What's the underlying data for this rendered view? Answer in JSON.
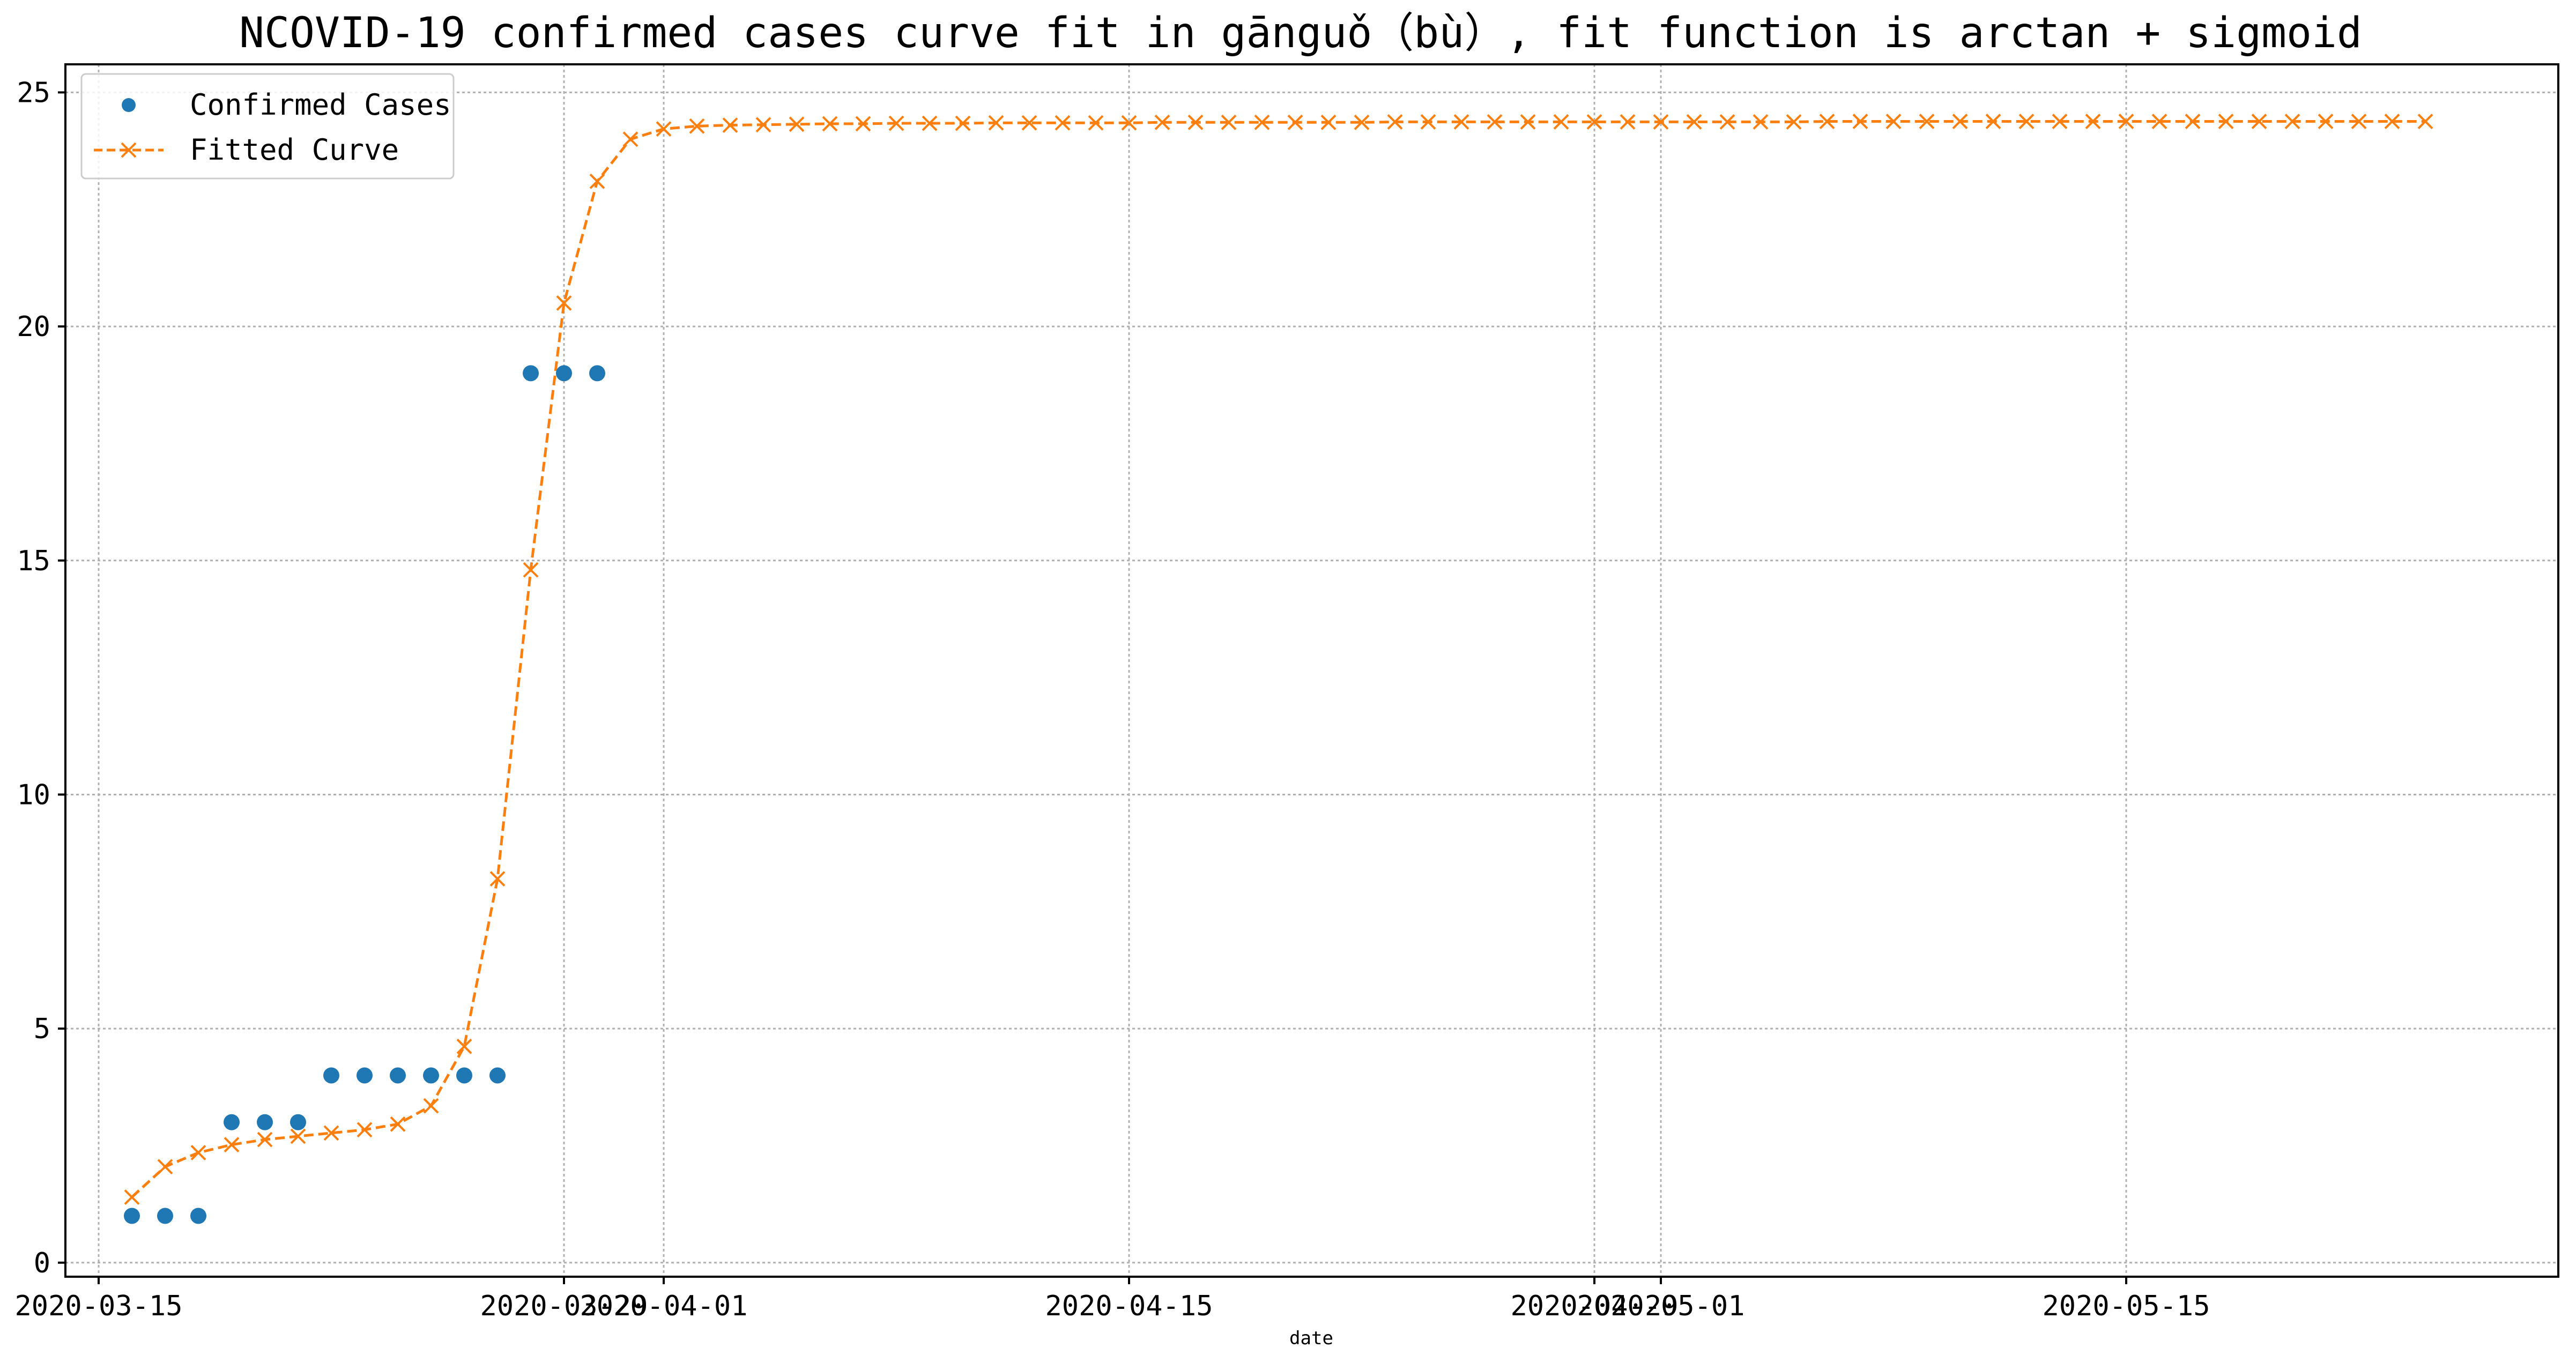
{
  "chart_data": {
    "type": "line",
    "title": "NCOVID-19 confirmed cases curve fit in gānguǒ（bù）, fit function is arctan + sigmoid",
    "xlabel": "date",
    "ylabel": "",
    "x_axis": {
      "type": "date",
      "range": [
        "2020-03-14",
        "2020-05-28"
      ],
      "tick_labels": [
        {
          "date": "2020-03-15",
          "label": "2020-03-15"
        },
        {
          "date": "2020-03-29",
          "label": "2020-03-29"
        },
        {
          "date": "2020-04-01",
          "label": "2020-04-01"
        },
        {
          "date": "2020-04-15",
          "label": "2020-04-15"
        },
        {
          "date": "2020-04-29",
          "label": "2020-04-29"
        },
        {
          "date": "2020-05-01",
          "label": "2020-05-01"
        },
        {
          "date": "2020-05-15",
          "label": "2020-05-15"
        }
      ]
    },
    "y_axis": {
      "range": [
        -0.3,
        25.6
      ],
      "ticks": [
        0,
        5,
        10,
        15,
        20,
        25
      ],
      "tick_labels": [
        "0",
        "5",
        "10",
        "15",
        "20",
        "25"
      ]
    },
    "grid": true,
    "legend": {
      "position": "top-left",
      "entries": [
        "Confirmed Cases",
        "Fitted Curve"
      ]
    },
    "series": [
      {
        "name": "Confirmed Cases",
        "style": "markers",
        "marker": "circle",
        "color": "#1f77b4",
        "points": [
          {
            "date": "2020-03-16",
            "value": 1
          },
          {
            "date": "2020-03-17",
            "value": 1
          },
          {
            "date": "2020-03-18",
            "value": 1
          },
          {
            "date": "2020-03-19",
            "value": 3
          },
          {
            "date": "2020-03-20",
            "value": 3
          },
          {
            "date": "2020-03-21",
            "value": 3
          },
          {
            "date": "2020-03-22",
            "value": 4
          },
          {
            "date": "2020-03-23",
            "value": 4
          },
          {
            "date": "2020-03-24",
            "value": 4
          },
          {
            "date": "2020-03-25",
            "value": 4
          },
          {
            "date": "2020-03-26",
            "value": 4
          },
          {
            "date": "2020-03-27",
            "value": 4
          },
          {
            "date": "2020-03-28",
            "value": 19
          },
          {
            "date": "2020-03-29",
            "value": 19
          },
          {
            "date": "2020-03-30",
            "value": 19
          }
        ]
      },
      {
        "name": "Fitted Curve",
        "style": "dashed-line-with-x-markers",
        "marker": "x",
        "color": "#ff7f0e",
        "start_date": "2020-03-16",
        "values": [
          1.4,
          2.05,
          2.35,
          2.52,
          2.63,
          2.7,
          2.77,
          2.84,
          2.96,
          3.35,
          4.62,
          8.2,
          14.8,
          20.5,
          23.1,
          24.0,
          24.22,
          24.28,
          24.3,
          24.31,
          24.32,
          24.33,
          24.33,
          24.34,
          24.34,
          24.34,
          24.35,
          24.35,
          24.35,
          24.35,
          24.35,
          24.36,
          24.36,
          24.36,
          24.36,
          24.36,
          24.36,
          24.36,
          24.37,
          24.37,
          24.37,
          24.37,
          24.37,
          24.37,
          24.37,
          24.37,
          24.37,
          24.37,
          24.37,
          24.37,
          24.37,
          24.38,
          24.38,
          24.38,
          24.38,
          24.38,
          24.38,
          24.38,
          24.38,
          24.38,
          24.38,
          24.38,
          24.38,
          24.38,
          24.38,
          24.38,
          24.38,
          24.38,
          24.38,
          24.38
        ]
      }
    ]
  }
}
